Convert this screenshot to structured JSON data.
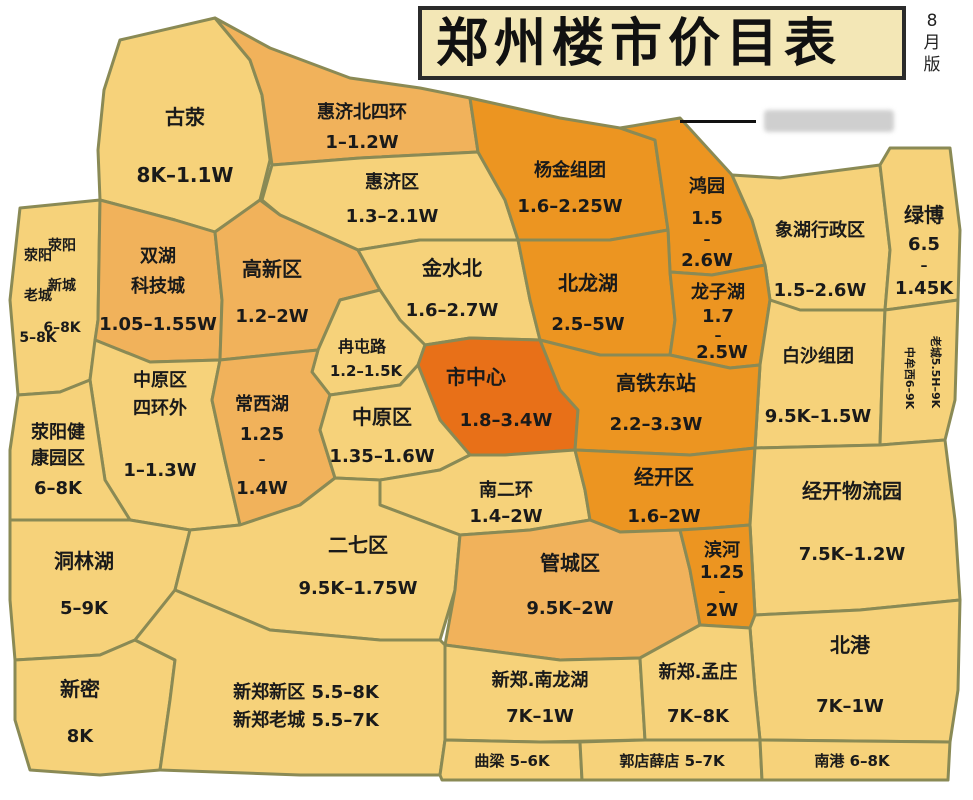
{
  "title": "郑州楼市价目表",
  "edition_lines": [
    "8",
    "月",
    "版"
  ],
  "colors": {
    "light": "#f6d27a",
    "medium": "#f1b25b",
    "dark": "#ec9521",
    "darkest": "#e87018",
    "border": "#8a8a55"
  },
  "regions": {
    "gurong": {
      "name": "古荥",
      "price": "8K–1.1W"
    },
    "huijibei": {
      "name": "惠济北四环",
      "price": "1–1.2W"
    },
    "huiji": {
      "name": "惠济区",
      "price": "1.3–2.1W"
    },
    "yangjin": {
      "name": "杨金组团",
      "price": "1.6–2.25W"
    },
    "hongyuan": {
      "name": "鸿园",
      "price_lines": [
        "1.5",
        "–",
        "2.6W"
      ]
    },
    "xianghu": {
      "name": "象湖行政区",
      "price": "1.5–2.6W"
    },
    "lvbo": {
      "name": "绿博",
      "price_lines": [
        "6.5",
        "–",
        "1.45K"
      ]
    },
    "xingyang_xincheng": {
      "name_lines": [
        "荥阳",
        "新城",
        "6–8K"
      ],
      "price_lines": [
        "荥阳",
        "老城",
        "5–8K"
      ]
    },
    "shuanghu": {
      "name": "双湖",
      "name2": "科技城",
      "price": "1.05–1.55W"
    },
    "gaoxin": {
      "name": "高新区",
      "price": "1.2–2W"
    },
    "jinshuibei": {
      "name": "金水北",
      "price": "1.6–2.7W"
    },
    "beilonghu": {
      "name": "北龙湖",
      "price": "2.5–5W"
    },
    "longzihu": {
      "name": "龙子湖",
      "price_lines": [
        "1.7",
        "–",
        "2.5W"
      ]
    },
    "baisha": {
      "name": "白沙组团",
      "price": "9.5K–1.5W"
    },
    "laocheng": {
      "name_lines": [
        "老城5.5H–9K"
      ],
      "price_lines": [
        "中牟西6–9K"
      ]
    },
    "rantun": {
      "name": "冉屯路",
      "price": "1.2–1.5K"
    },
    "shizhongxin": {
      "name": "市中心",
      "price": "1.8–3.4W"
    },
    "gaotie": {
      "name": "高铁东站",
      "price": "2.2–3.3W"
    },
    "zhongyuan_sihuan": {
      "name": "中原区",
      "name2": "四环外",
      "price": "1–1.3W"
    },
    "changxihu": {
      "name": "常西湖",
      "price_lines": [
        "1.25",
        "–",
        "1.4W"
      ]
    },
    "zhongyuan": {
      "name": "中原区",
      "price": "1.35–1.6W"
    },
    "jiankang": {
      "name_lines": [
        "荥阳健",
        "康园区"
      ],
      "price": "6–8K"
    },
    "nanerhuan": {
      "name": "南二环",
      "price": "1.4–2W"
    },
    "jingkai": {
      "name": "经开区",
      "price": "1.6–2W"
    },
    "jingkai_wuliu": {
      "name": "经开物流园",
      "price": "7.5K–1.2W"
    },
    "donglinhu": {
      "name": "洞林湖",
      "price": "5–9K"
    },
    "erqi": {
      "name": "二七区",
      "price": "9.5K–1.75W"
    },
    "guancheng": {
      "name": "管城区",
      "price": "9.5K–2W"
    },
    "binhe": {
      "name": "滨河",
      "price_lines": [
        "1.25",
        "–",
        "2W"
      ]
    },
    "beigang": {
      "name": "北港",
      "price": "7K–1W"
    },
    "xinmi": {
      "name": "新密",
      "price": "8K"
    },
    "xinzheng_new": {
      "name": "新郑新区 5.5–8K"
    },
    "xinzheng_old": {
      "name": "新郑老城 5.5–7K"
    },
    "xinzheng_nanlonghu": {
      "name": "新郑.南龙湖",
      "price": "7K–1W"
    },
    "xinzheng_mengzhuang": {
      "name": "新郑.孟庄",
      "price": "7K–8K"
    },
    "quliang": {
      "name": "曲梁 5–6K"
    },
    "guodian": {
      "name": "郭店薛店 5–7K"
    },
    "nangang": {
      "name": "南港 6–8K"
    }
  }
}
